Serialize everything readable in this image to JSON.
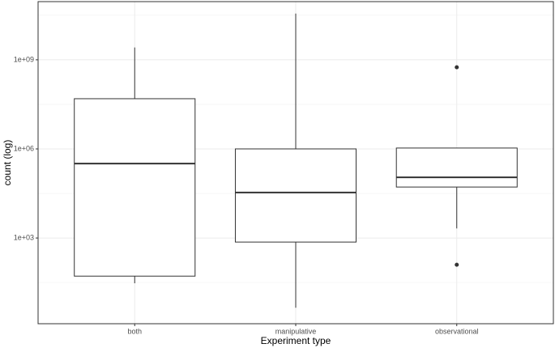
{
  "chart_data": {
    "type": "boxplot",
    "x_label": "Experiment type",
    "y_label": "count (log)",
    "categories": [
      "both",
      "manipulative",
      "observational"
    ],
    "boxes": [
      {
        "min": 30,
        "q1": 52,
        "median": 320000,
        "q3": 49000000,
        "max": 2600000000,
        "outliers": []
      },
      {
        "min": 4.5,
        "q1": 730,
        "median": 34000,
        "q3": 1000000,
        "max": 36000000000,
        "outliers": []
      },
      {
        "min": 2100,
        "q1": 52000,
        "median": 110000,
        "q3": 1070000,
        "max": 1070000,
        "outliers": [
          560000000,
          126
        ]
      }
    ],
    "y_scale": "log",
    "ylim": [
      1.3,
      91000000000
    ],
    "yticks": [
      {
        "value": 1000,
        "label": "1e+03"
      },
      {
        "value": 1000000,
        "label": "1e+06"
      },
      {
        "value": 1000000000,
        "label": "1e+09"
      }
    ],
    "grid": true,
    "color": "#ffffff",
    "line_color": "#333333"
  }
}
